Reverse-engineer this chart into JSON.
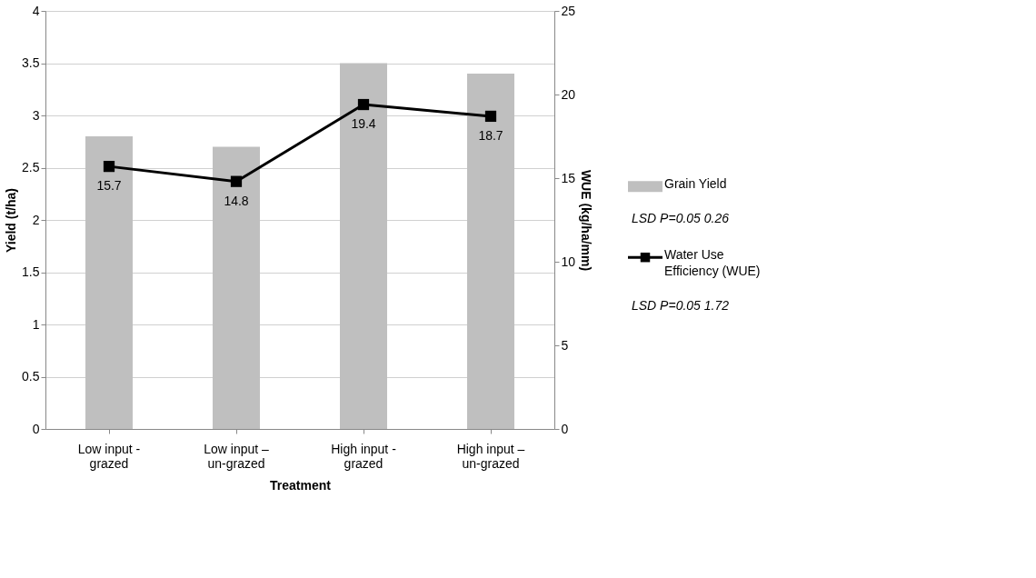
{
  "chart_data": {
    "type": "bar",
    "xlabel": "Treatment",
    "ylabel": "Yield (t/ha)",
    "y2label": "WUE (kg/ha/mm)",
    "categories": [
      "Low input - grazed",
      "Low input – un-grazed",
      "High input - grazed",
      "High input – un-grazed"
    ],
    "series": [
      {
        "name": "Grain Yield",
        "color": "#bfbfbf",
        "values": [
          2.8,
          2.7,
          3.5,
          3.4
        ]
      },
      {
        "name": "Water Use Efficiency (WUE)",
        "type": "line",
        "axis": "y2",
        "color": "#000000",
        "marker": "square",
        "values": [
          15.7,
          14.8,
          19.4,
          18.7
        ],
        "value_labels": [
          "15.7",
          "14.8",
          "19.4",
          "18.7"
        ]
      }
    ],
    "ylim": [
      0,
      4
    ],
    "yticks": [
      0,
      0.5,
      1,
      1.5,
      2,
      2.5,
      3,
      3.5,
      4
    ],
    "y2lim": [
      0,
      25
    ],
    "y2ticks": [
      0,
      5,
      10,
      15,
      20,
      25
    ],
    "grid": "y",
    "legend": "right",
    "line_style": "solid",
    "annotations": [
      "LSD P=0.05 0.26",
      "LSD P=0.05 1.72"
    ]
  }
}
